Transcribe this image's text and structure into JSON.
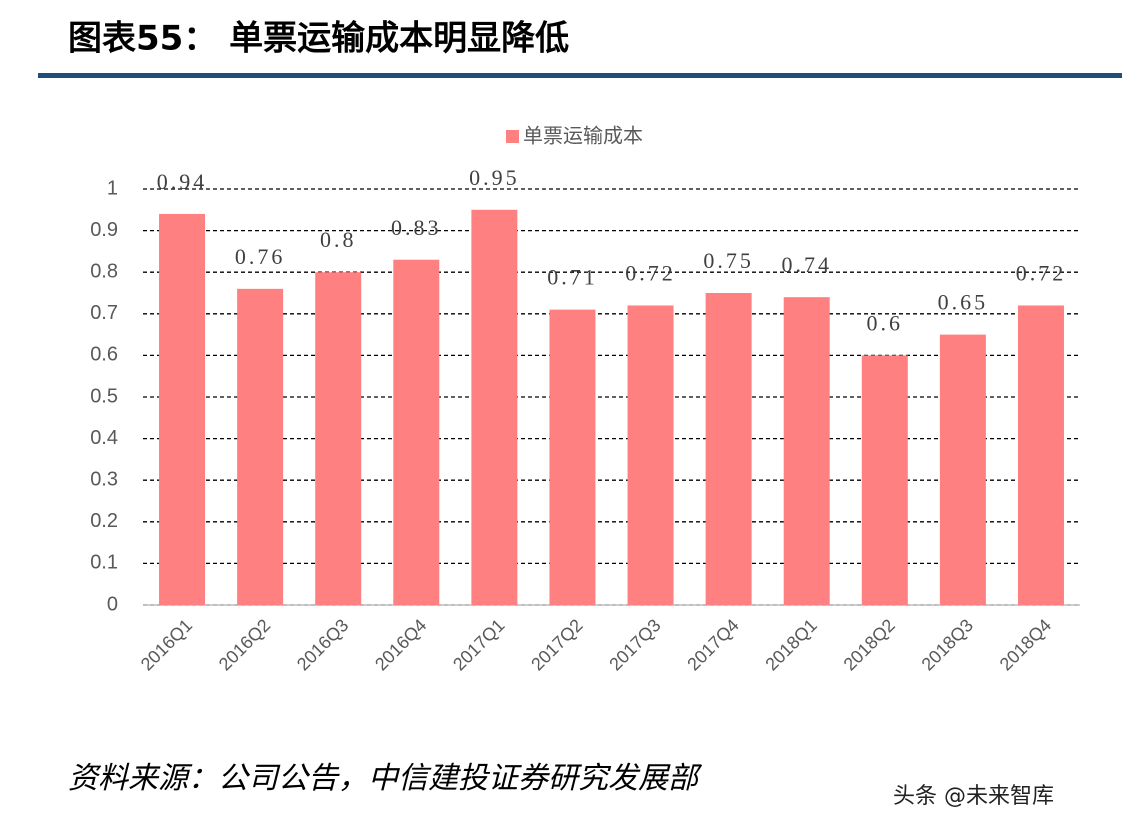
{
  "chart_data": {
    "type": "bar",
    "title": "图表55：  单票运输成本明显降低",
    "categories": [
      "2016Q1",
      "2016Q2",
      "2016Q3",
      "2016Q4",
      "2017Q1",
      "2017Q2",
      "2017Q3",
      "2017Q4",
      "2018Q1",
      "2018Q2",
      "2018Q3",
      "2018Q4"
    ],
    "series": [
      {
        "name": "单票运输成本",
        "color": "#ff8080",
        "values": [
          0.94,
          0.76,
          0.8,
          0.83,
          0.95,
          0.71,
          0.72,
          0.75,
          0.74,
          0.6,
          0.65,
          0.72
        ]
      }
    ],
    "ylim": [
      0,
      1
    ],
    "yticks": [
      0,
      0.1,
      0.2,
      0.3,
      0.4,
      0.5,
      0.6,
      0.7,
      0.8,
      0.9,
      1
    ],
    "grid": true,
    "legend": "top",
    "source": "资料来源：公司公告，中信建投证券研究发展部",
    "watermark": "头条 @未来智库"
  }
}
